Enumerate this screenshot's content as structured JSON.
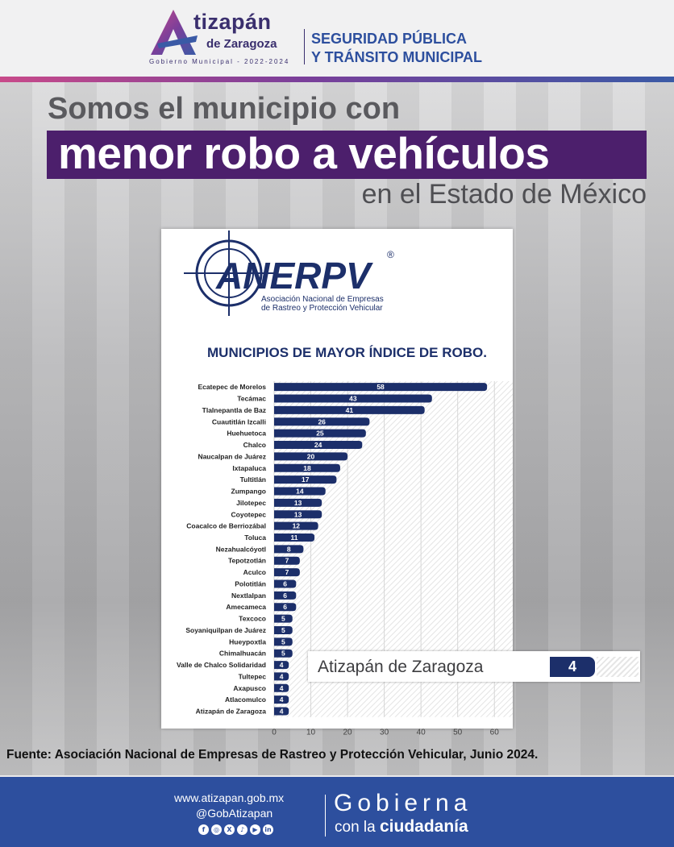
{
  "header": {
    "brand": "tizapán",
    "brand_sub": "de Zaragoza",
    "tagline": "Gobierno Municipal - 2022-2024",
    "dept_line1": "SEGURIDAD PÚBLICA",
    "dept_line2": "Y TRÁNSITO MUNICIPAL"
  },
  "headline": {
    "line1": "Somos el municipio con",
    "line2": "menor robo a vehículos",
    "line3": "en el Estado de México"
  },
  "panel": {
    "org_acronym": "ANERPV",
    "org_registered": "®",
    "org_line1": "Asociación Nacional de Empresas",
    "org_line2": "de Rastreo y Protección Vehicular"
  },
  "chart_data": {
    "type": "bar",
    "orientation": "horizontal",
    "title": "MUNICIPIOS DE MAYOR ÍNDICE DE ROBO.",
    "categories": [
      "Ecatepec de Morelos",
      "Tecámac",
      "Tlalnepantla de Baz",
      "Cuautitlán Izcalli",
      "Huehuetoca",
      "Chalco",
      "Naucalpan de Juárez",
      "Ixtapaluca",
      "Tultitlán",
      "Zumpango",
      "Jilotepec",
      "Coyotepec",
      "Coacalco de Berriozábal",
      "Toluca",
      "Nezahualcóyotl",
      "Tepotzotlán",
      "Aculco",
      "Polotitlán",
      "Nextlalpan",
      "Amecameca",
      "Texcoco",
      "Soyaniquilpan de Juárez",
      "Hueypoxtla",
      "Chimalhuacán",
      "Valle de Chalco Solidaridad",
      "Tultepec",
      "Axapusco",
      "Atlacomulco",
      "Atizapán de Zaragoza"
    ],
    "values": [
      58,
      43,
      41,
      26,
      25,
      24,
      20,
      18,
      17,
      14,
      13,
      13,
      12,
      11,
      8,
      7,
      7,
      6,
      6,
      6,
      5,
      5,
      5,
      5,
      4,
      4,
      4,
      4,
      4
    ],
    "xlim": [
      0,
      65
    ],
    "xticks": [
      0,
      10,
      20,
      30,
      40,
      50,
      60
    ],
    "bar_color": "#1c2f6a",
    "grid": true
  },
  "callout": {
    "label": "Atizapán de Zaragoza",
    "value": "4"
  },
  "source": "Fuente: Asociación Nacional de Empresas de Rastreo y Protección Vehicular, Junio 2024.",
  "footer": {
    "website": "www.atizapan.gob.mx",
    "handle": "@GobAtizapan",
    "social_icons": [
      "facebook-icon",
      "instagram-icon",
      "x-icon",
      "tiktok-icon",
      "youtube-icon",
      "linkedin-icon"
    ],
    "slogan_big": "Gobierna",
    "slogan_small": "con la",
    "slogan_bold": "ciudadanía"
  },
  "colors": {
    "navy": "#1c2f6a",
    "purple": "#4c1f6c",
    "blue": "#2d4f9e"
  }
}
